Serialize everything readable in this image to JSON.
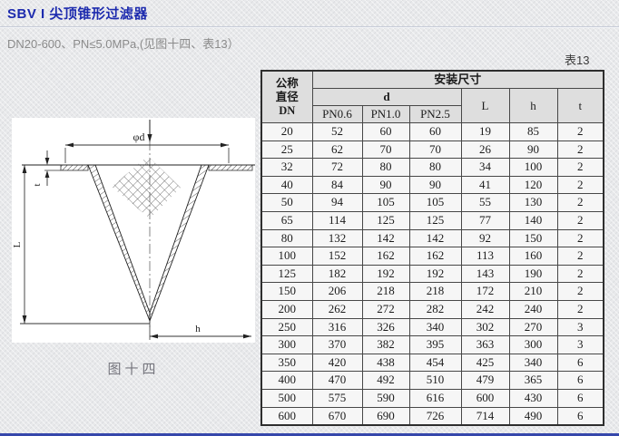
{
  "page": {
    "title": "SBV I 尖顶锥形过滤器",
    "subtitle": "DN20-600、PN≤5.0MPa,(见图十四、表13）",
    "accent_color": "#1d2bae",
    "background_color": "#e8e9eb"
  },
  "figure": {
    "caption": "图十四",
    "labels": {
      "diameter": "φd",
      "thickness": "t",
      "length": "L",
      "height": "h"
    }
  },
  "table": {
    "tag": "表13",
    "col1_lines": [
      "公称",
      "直径",
      "DN"
    ],
    "install_header": "安装尺寸",
    "d_header": "d",
    "pn_cols": [
      "PN0.6",
      "PN1.0",
      "PN2.5"
    ],
    "dim_cols": [
      "L",
      "h",
      "t"
    ],
    "rows": [
      [
        "20",
        "52",
        "60",
        "60",
        "19",
        "85",
        "2"
      ],
      [
        "25",
        "62",
        "70",
        "70",
        "26",
        "90",
        "2"
      ],
      [
        "32",
        "72",
        "80",
        "80",
        "34",
        "100",
        "2"
      ],
      [
        "40",
        "84",
        "90",
        "90",
        "41",
        "120",
        "2"
      ],
      [
        "50",
        "94",
        "105",
        "105",
        "55",
        "130",
        "2"
      ],
      [
        "65",
        "114",
        "125",
        "125",
        "77",
        "140",
        "2"
      ],
      [
        "80",
        "132",
        "142",
        "142",
        "92",
        "150",
        "2"
      ],
      [
        "100",
        "152",
        "162",
        "162",
        "113",
        "160",
        "2"
      ],
      [
        "125",
        "182",
        "192",
        "192",
        "143",
        "190",
        "2"
      ],
      [
        "150",
        "206",
        "218",
        "218",
        "172",
        "210",
        "2"
      ],
      [
        "200",
        "262",
        "272",
        "282",
        "242",
        "240",
        "2"
      ],
      [
        "250",
        "316",
        "326",
        "340",
        "302",
        "270",
        "3"
      ],
      [
        "300",
        "370",
        "382",
        "395",
        "363",
        "300",
        "3"
      ],
      [
        "350",
        "420",
        "438",
        "454",
        "425",
        "340",
        "6"
      ],
      [
        "400",
        "470",
        "492",
        "510",
        "479",
        "365",
        "6"
      ],
      [
        "500",
        "575",
        "590",
        "616",
        "600",
        "430",
        "6"
      ],
      [
        "600",
        "670",
        "690",
        "726",
        "714",
        "490",
        "6"
      ]
    ]
  }
}
